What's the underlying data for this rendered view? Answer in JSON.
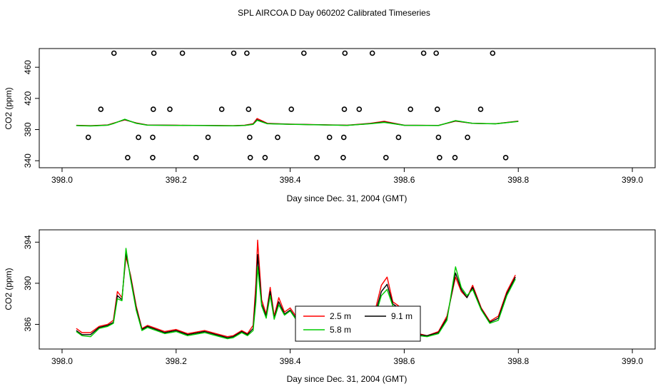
{
  "title": "SPL AIRCOA D  Day 060202  Calibrated Timeseries",
  "colors": {
    "red": "#ff0000",
    "green": "#00cc00",
    "black": "#000000"
  },
  "chart_data": [
    {
      "type": "scatter",
      "xlabel": "Day since Dec. 31, 2004 (GMT)",
      "ylabel": "CO2 (ppm)",
      "xlim": [
        397.96,
        399.04
      ],
      "ylim": [
        331,
        484
      ],
      "x_ticks": [
        398.0,
        398.2,
        398.4,
        398.6,
        398.8,
        399.0
      ],
      "x_tick_labels": [
        "398.0",
        "398.2",
        "398.4",
        "398.6",
        "398.8",
        "399.0"
      ],
      "y_ticks": [
        340,
        380,
        420,
        460
      ],
      "y_tick_labels": [
        "340",
        "380",
        "420",
        "460"
      ],
      "points": {
        "marker": "open-circle",
        "x": [
          398.091,
          398.161,
          398.211,
          398.301,
          398.324,
          398.424,
          398.496,
          398.544,
          398.634,
          398.656,
          398.755,
          398.068,
          398.16,
          398.189,
          398.28,
          398.327,
          398.402,
          398.495,
          398.521,
          398.611,
          398.658,
          398.734,
          398.046,
          398.134,
          398.159,
          398.256,
          398.329,
          398.378,
          398.469,
          398.494,
          398.59,
          398.66,
          398.711,
          398.115,
          398.159,
          398.235,
          398.33,
          398.356,
          398.447,
          398.493,
          398.568,
          398.662,
          398.689,
          398.778
        ],
        "y": [
          478,
          478,
          478,
          478,
          478,
          478,
          478,
          478,
          478,
          478,
          478,
          406,
          406,
          406,
          406,
          406,
          406,
          406,
          406,
          406,
          406,
          406,
          370,
          370,
          370,
          370,
          370,
          370,
          370,
          370,
          370,
          370,
          370,
          344,
          344,
          344,
          344,
          344,
          344,
          344,
          344,
          344,
          344,
          344
        ]
      },
      "series": [
        {
          "color": "#ff0000",
          "x": [
            398.025,
            398.05,
            398.08,
            398.09,
            398.11,
            398.13,
            398.15,
            398.2,
            398.25,
            398.3,
            398.32,
            398.335,
            398.342,
            398.36,
            398.4,
            398.5,
            398.54,
            398.565,
            398.6,
            398.66,
            398.69,
            398.72,
            398.76,
            398.8
          ],
          "y": [
            385.4,
            385,
            385.9,
            388.2,
            392.4,
            388.5,
            385.8,
            385.5,
            385.3,
            385,
            385.5,
            387.5,
            394.2,
            388,
            387,
            385.5,
            388,
            390.6,
            385.6,
            385.3,
            390.8,
            388,
            387.5,
            390.8
          ]
        },
        {
          "color": "#000000",
          "x": [
            398.025,
            398.05,
            398.08,
            398.09,
            398.11,
            398.13,
            398.15,
            398.2,
            398.25,
            398.3,
            398.32,
            398.335,
            398.342,
            398.36,
            398.4,
            398.5,
            398.54,
            398.565,
            398.6,
            398.66,
            398.69,
            398.72,
            398.76,
            398.8
          ],
          "y": [
            385.2,
            384.8,
            385.7,
            387.8,
            392.9,
            388.2,
            385.7,
            385.4,
            385.2,
            384.9,
            385.3,
            386.9,
            392.6,
            387.6,
            386.8,
            385.4,
            387.6,
            389.6,
            385.5,
            385.2,
            391.2,
            388,
            387.4,
            390.6
          ]
        },
        {
          "color": "#00cc00",
          "x": [
            398.025,
            398.05,
            398.08,
            398.09,
            398.11,
            398.13,
            398.15,
            398.2,
            398.25,
            398.3,
            398.32,
            398.335,
            398.342,
            398.36,
            398.4,
            398.5,
            398.54,
            398.565,
            398.6,
            398.66,
            398.69,
            398.72,
            398.76,
            398.8
          ],
          "y": [
            385.1,
            384.6,
            385.6,
            387.6,
            393.3,
            388,
            385.6,
            385.3,
            385.1,
            384.8,
            385.2,
            386.6,
            391.8,
            387.4,
            386.7,
            385.3,
            387.4,
            389.2,
            385.4,
            385.1,
            391.6,
            388,
            387.3,
            390.4
          ]
        }
      ]
    },
    {
      "type": "line",
      "xlabel": "Day since Dec. 31, 2004 (GMT)",
      "ylabel": "CO2 (ppm)",
      "xlim": [
        397.96,
        399.04
      ],
      "ylim": [
        383.6,
        395.2
      ],
      "x_ticks": [
        398.0,
        398.2,
        398.4,
        398.6,
        398.8,
        399.0
      ],
      "x_tick_labels": [
        "398.0",
        "398.2",
        "398.4",
        "398.6",
        "398.8",
        "399.0"
      ],
      "y_ticks": [
        386,
        390,
        394
      ],
      "y_tick_labels": [
        "386",
        "390",
        "394"
      ],
      "legend": {
        "position": "center",
        "labels": [
          "2.5 m",
          "9.1 m",
          "5.8 m"
        ],
        "colors": [
          "#ff0000",
          "#000000",
          "#00cc00"
        ]
      },
      "series": [
        {
          "name": "2.5 m",
          "color": "#ff0000",
          "x": [
            398.025,
            398.035,
            398.05,
            398.065,
            398.08,
            398.09,
            398.097,
            398.105,
            398.112,
            398.12,
            398.13,
            398.14,
            398.15,
            398.165,
            398.18,
            398.2,
            398.22,
            398.25,
            398.27,
            398.29,
            398.3,
            398.315,
            398.325,
            398.335,
            398.34,
            398.343,
            398.35,
            398.358,
            398.365,
            398.372,
            398.38,
            398.39,
            398.4,
            398.41,
            398.43,
            398.45,
            398.47,
            398.49,
            398.5,
            398.515,
            398.53,
            398.545,
            398.56,
            398.57,
            398.58,
            398.59,
            398.6,
            398.61,
            398.625,
            398.64,
            398.66,
            398.675,
            398.69,
            398.7,
            398.71,
            398.72,
            398.735,
            398.75,
            398.765,
            398.78,
            398.795
          ],
          "y": [
            385.6,
            385.2,
            385.2,
            385.8,
            386.0,
            386.4,
            389.2,
            388.6,
            392.6,
            390.8,
            387.8,
            385.6,
            385.9,
            385.6,
            385.3,
            385.5,
            385.1,
            385.4,
            385.1,
            384.8,
            384.9,
            385.4,
            385.1,
            385.9,
            390.0,
            394.2,
            388.4,
            387.0,
            389.6,
            386.8,
            388.6,
            387.2,
            387.6,
            386.8,
            386.0,
            385.7,
            385.6,
            385.9,
            386.5,
            386.0,
            385.4,
            386.5,
            389.8,
            390.6,
            388.2,
            387.8,
            385.5,
            386.0,
            385.1,
            384.9,
            385.3,
            386.8,
            390.6,
            389.2,
            388.6,
            389.8,
            387.6,
            386.3,
            386.8,
            389.2,
            390.8
          ]
        },
        {
          "name": "9.1 m",
          "color": "#000000",
          "x": [
            398.025,
            398.035,
            398.05,
            398.065,
            398.08,
            398.09,
            398.097,
            398.105,
            398.112,
            398.12,
            398.13,
            398.14,
            398.15,
            398.165,
            398.18,
            398.2,
            398.22,
            398.25,
            398.27,
            398.29,
            398.3,
            398.315,
            398.325,
            398.335,
            398.34,
            398.343,
            398.35,
            398.358,
            398.365,
            398.372,
            398.38,
            398.39,
            398.4,
            398.41,
            398.43,
            398.45,
            398.47,
            398.49,
            398.5,
            398.515,
            398.53,
            398.545,
            398.56,
            398.57,
            398.58,
            398.59,
            398.6,
            398.61,
            398.625,
            398.64,
            398.66,
            398.675,
            398.69,
            398.7,
            398.71,
            398.72,
            398.735,
            398.75,
            398.765,
            398.78,
            398.795
          ],
          "y": [
            385.4,
            385.0,
            385.0,
            385.7,
            385.9,
            386.2,
            388.8,
            388.4,
            393.0,
            390.6,
            387.6,
            385.5,
            385.8,
            385.5,
            385.2,
            385.4,
            385.0,
            385.3,
            385.0,
            384.7,
            384.8,
            385.3,
            385.0,
            385.6,
            389.0,
            392.8,
            388.0,
            386.8,
            389.2,
            386.6,
            388.2,
            387.0,
            387.4,
            386.6,
            385.9,
            385.6,
            385.5,
            385.8,
            386.3,
            385.9,
            385.3,
            386.2,
            389.2,
            389.9,
            388.0,
            387.6,
            385.4,
            385.9,
            385.0,
            384.9,
            385.2,
            386.6,
            391.0,
            389.4,
            388.6,
            389.6,
            387.5,
            386.2,
            386.6,
            389.0,
            390.6
          ]
        },
        {
          "name": "5.8 m",
          "color": "#00cc00",
          "x": [
            398.025,
            398.035,
            398.05,
            398.065,
            398.08,
            398.09,
            398.097,
            398.105,
            398.112,
            398.12,
            398.13,
            398.14,
            398.15,
            398.165,
            398.18,
            398.2,
            398.22,
            398.25,
            398.27,
            398.29,
            398.3,
            398.315,
            398.325,
            398.335,
            398.34,
            398.343,
            398.35,
            398.358,
            398.365,
            398.372,
            398.38,
            398.39,
            398.4,
            398.41,
            398.43,
            398.45,
            398.47,
            398.49,
            398.5,
            398.515,
            398.53,
            398.545,
            398.56,
            398.57,
            398.58,
            398.59,
            398.6,
            398.61,
            398.625,
            398.64,
            398.66,
            398.675,
            398.69,
            398.7,
            398.71,
            398.72,
            398.735,
            398.75,
            398.765,
            398.78,
            398.795
          ],
          "y": [
            385.3,
            384.9,
            384.8,
            385.6,
            385.8,
            386.1,
            388.5,
            388.3,
            393.4,
            390.4,
            387.4,
            385.4,
            385.7,
            385.4,
            385.1,
            385.3,
            384.9,
            385.2,
            384.9,
            384.6,
            384.7,
            385.2,
            384.9,
            385.4,
            388.2,
            391.6,
            387.8,
            386.6,
            388.8,
            386.5,
            387.9,
            386.9,
            387.3,
            386.5,
            385.8,
            385.5,
            385.4,
            385.7,
            386.2,
            385.8,
            385.2,
            386.0,
            388.8,
            389.4,
            387.8,
            387.4,
            385.3,
            385.8,
            384.9,
            384.8,
            385.1,
            386.4,
            391.6,
            389.6,
            388.8,
            389.4,
            387.4,
            386.1,
            386.4,
            388.8,
            390.4
          ]
        }
      ]
    }
  ]
}
